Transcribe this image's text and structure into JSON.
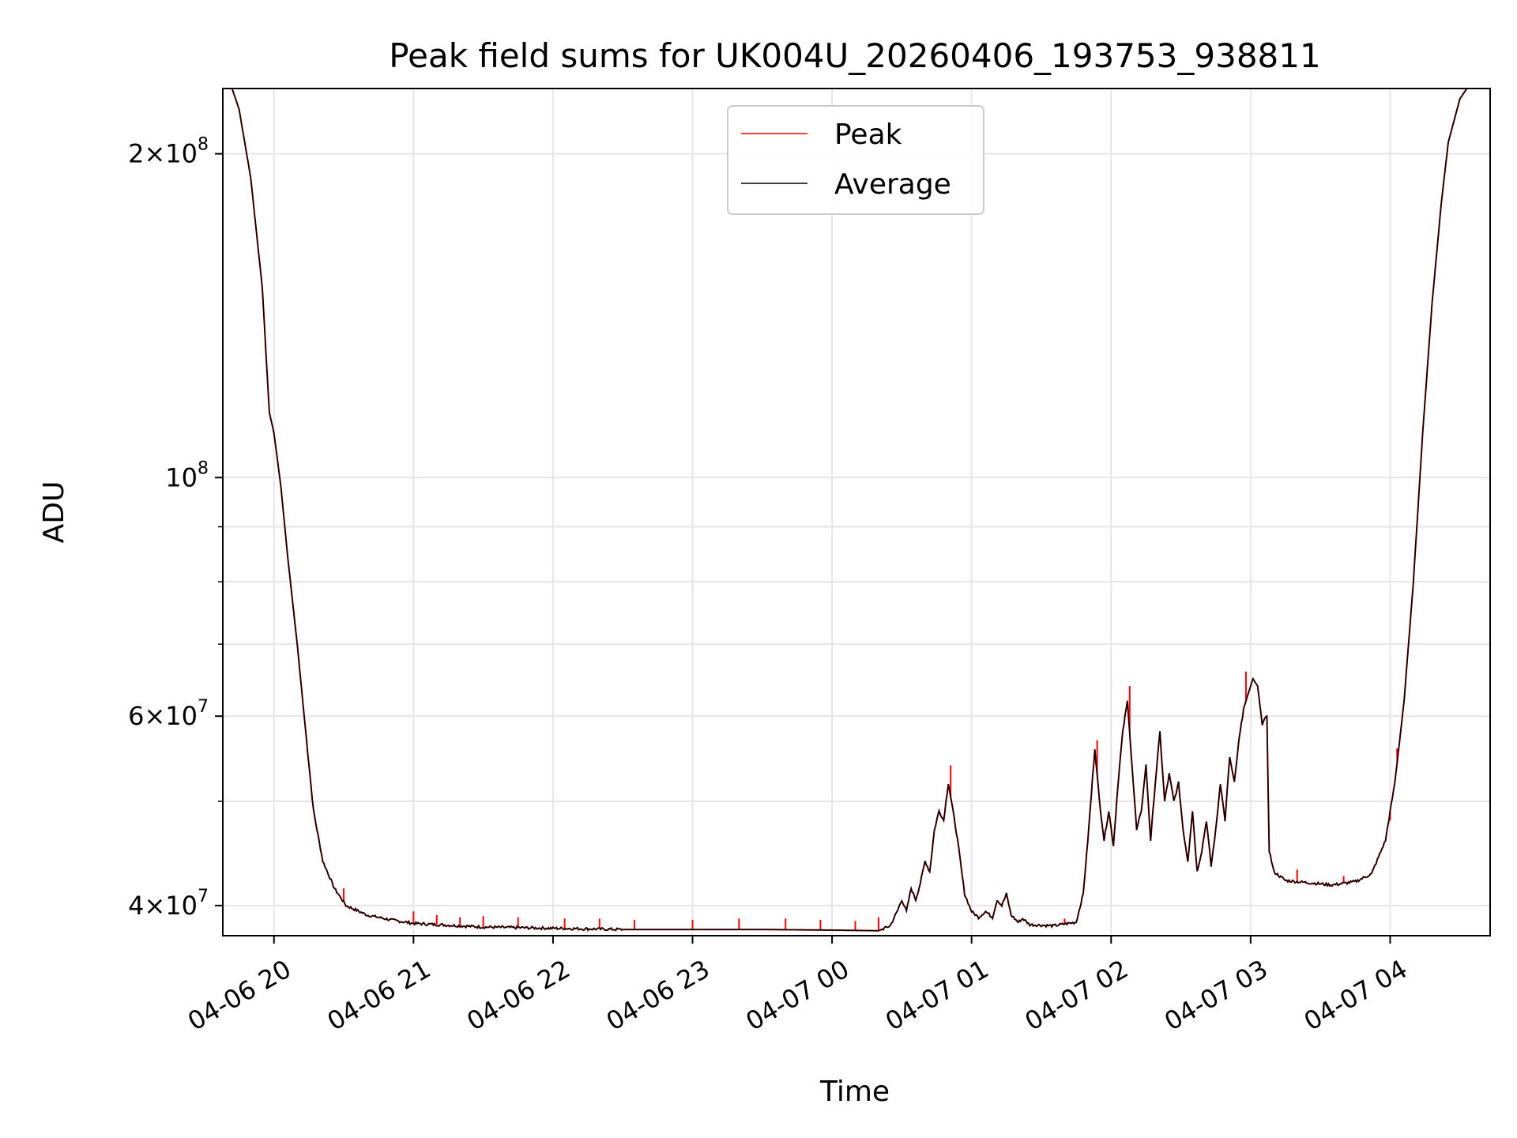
{
  "chart_data": {
    "type": "line",
    "title": "Peak field sums for UK004U_20260406_193753_938811",
    "xlabel": "Time",
    "ylabel": "ADU",
    "yscale": "log",
    "xlim": [
      "04-06 19:38",
      "04-07 04:43"
    ],
    "ylim": [
      37500000,
      230000000
    ],
    "grid": true,
    "legend_placement": "upper center",
    "x_ticks": [
      "04-06 20",
      "04-06 21",
      "04-06 22",
      "04-06 23",
      "04-07 00",
      "04-07 01",
      "04-07 02",
      "04-07 03",
      "04-07 04"
    ],
    "y_ticks": [
      {
        "value": 40000000,
        "mantissa": "4",
        "exponent": "7"
      },
      {
        "value": 60000000,
        "mantissa": "6",
        "exponent": "7"
      },
      {
        "value": 100000000,
        "mantissa": "",
        "exponent": "8"
      },
      {
        "value": 200000000,
        "mantissa": "2",
        "exponent": "8"
      }
    ],
    "series": [
      {
        "name": "Peak",
        "color": "#ff0000"
      },
      {
        "name": "Average",
        "color": "#000000"
      }
    ],
    "average_points": [
      [
        "04-06 19:38",
        230000000
      ],
      [
        "04-06 19:42",
        230000000
      ],
      [
        "04-06 19:45",
        220000000
      ],
      [
        "04-06 19:50",
        190000000
      ],
      [
        "04-06 19:55",
        150000000
      ],
      [
        "04-06 19:58",
        115000000
      ],
      [
        "04-06 20:00",
        110000000
      ],
      [
        "04-06 20:03",
        98000000
      ],
      [
        "04-06 20:06",
        84000000
      ],
      [
        "04-06 20:10",
        70000000
      ],
      [
        "04-06 20:14",
        57000000
      ],
      [
        "04-06 20:17",
        49000000
      ],
      [
        "04-06 20:21",
        44000000
      ],
      [
        "04-06 20:26",
        41500000
      ],
      [
        "04-06 20:31",
        40000000
      ],
      [
        "04-06 20:40",
        39200000
      ],
      [
        "04-06 20:50",
        38800000
      ],
      [
        "04-06 21:00",
        38500000
      ],
      [
        "04-06 21:30",
        38200000
      ],
      [
        "04-06 22:00",
        38100000
      ],
      [
        "04-06 22:30",
        38000000
      ],
      [
        "04-06 23:00",
        38000000
      ],
      [
        "04-06 23:30",
        38000000
      ],
      [
        "04-07 00:00",
        37950000
      ],
      [
        "04-07 00:20",
        37900000
      ],
      [
        "04-07 00:25",
        38300000
      ],
      [
        "04-07 00:28",
        39500000
      ],
      [
        "04-07 00:30",
        40500000
      ],
      [
        "04-07 00:32",
        39500000
      ],
      [
        "04-07 00:34",
        41500000
      ],
      [
        "04-07 00:36",
        40500000
      ],
      [
        "04-07 00:38",
        42000000
      ],
      [
        "04-07 00:40",
        44000000
      ],
      [
        "04-07 00:42",
        43000000
      ],
      [
        "04-07 00:44",
        47000000
      ],
      [
        "04-07 00:46",
        49000000
      ],
      [
        "04-07 00:48",
        48000000
      ],
      [
        "04-07 00:50",
        52000000
      ],
      [
        "04-07 00:52",
        49000000
      ],
      [
        "04-07 00:54",
        46000000
      ],
      [
        "04-07 00:57",
        41000000
      ],
      [
        "04-07 01:00",
        39500000
      ],
      [
        "04-07 01:03",
        39000000
      ],
      [
        "04-07 01:06",
        39500000
      ],
      [
        "04-07 01:09",
        39000000
      ],
      [
        "04-07 01:11",
        40500000
      ],
      [
        "04-07 01:13",
        40000000
      ],
      [
        "04-07 01:15",
        41000000
      ],
      [
        "04-07 01:17",
        39200000
      ],
      [
        "04-07 01:20",
        38600000
      ],
      [
        "04-07 01:22",
        38900000
      ],
      [
        "04-07 01:25",
        38400000
      ],
      [
        "04-07 01:35",
        38300000
      ],
      [
        "04-07 01:45",
        38600000
      ],
      [
        "04-07 01:48",
        41000000
      ],
      [
        "04-07 01:50",
        46000000
      ],
      [
        "04-07 01:53",
        56000000
      ],
      [
        "04-07 01:55",
        50000000
      ],
      [
        "04-07 01:57",
        46000000
      ],
      [
        "04-07 01:59",
        49000000
      ],
      [
        "04-07 02:01",
        45500000
      ],
      [
        "04-07 02:03",
        52000000
      ],
      [
        "04-07 02:05",
        58000000
      ],
      [
        "04-07 02:07",
        62000000
      ],
      [
        "04-07 02:09",
        54000000
      ],
      [
        "04-07 02:11",
        47000000
      ],
      [
        "04-07 02:13",
        49000000
      ],
      [
        "04-07 02:15",
        54000000
      ],
      [
        "04-07 02:17",
        46000000
      ],
      [
        "04-07 02:19",
        52000000
      ],
      [
        "04-07 02:21",
        58000000
      ],
      [
        "04-07 02:23",
        50000000
      ],
      [
        "04-07 02:25",
        53000000
      ],
      [
        "04-07 02:27",
        50000000
      ],
      [
        "04-07 02:29",
        52000000
      ],
      [
        "04-07 02:31",
        47000000
      ],
      [
        "04-07 02:33",
        44000000
      ],
      [
        "04-07 02:35",
        49000000
      ],
      [
        "04-07 02:37",
        43000000
      ],
      [
        "04-07 02:39",
        45000000
      ],
      [
        "04-07 02:41",
        48000000
      ],
      [
        "04-07 02:43",
        43500000
      ],
      [
        "04-07 02:45",
        47000000
      ],
      [
        "04-07 02:47",
        52000000
      ],
      [
        "04-07 02:49",
        48000000
      ],
      [
        "04-07 02:51",
        55000000
      ],
      [
        "04-07 02:53",
        52000000
      ],
      [
        "04-07 02:55",
        57000000
      ],
      [
        "04-07 02:57",
        61000000
      ],
      [
        "04-07 02:59",
        63000000
      ],
      [
        "04-07 03:01",
        65000000
      ],
      [
        "04-07 03:03",
        64000000
      ],
      [
        "04-07 03:05",
        59000000
      ],
      [
        "04-07 03:07",
        60000000
      ],
      [
        "04-07 03:08",
        45000000
      ],
      [
        "04-07 03:10",
        43000000
      ],
      [
        "04-07 03:15",
        42200000
      ],
      [
        "04-07 03:25",
        42000000
      ],
      [
        "04-07 03:35",
        41800000
      ],
      [
        "04-07 03:45",
        42100000
      ],
      [
        "04-07 03:52",
        42800000
      ],
      [
        "04-07 03:58",
        46000000
      ],
      [
        "04-07 04:02",
        52000000
      ],
      [
        "04-07 04:06",
        62000000
      ],
      [
        "04-07 04:10",
        80000000
      ],
      [
        "04-07 04:14",
        110000000
      ],
      [
        "04-07 04:18",
        145000000
      ],
      [
        "04-07 04:22",
        180000000
      ],
      [
        "04-07 04:25",
        205000000
      ],
      [
        "04-07 04:30",
        225000000
      ],
      [
        "04-07 04:33",
        230000000
      ],
      [
        "04-07 04:43",
        230000000
      ]
    ],
    "peak_spikes": [
      [
        "04-06 20:20",
        45000000
      ],
      [
        "04-06 20:30",
        41500000
      ],
      [
        "04-06 21:00",
        39500000
      ],
      [
        "04-06 21:10",
        39200000
      ],
      [
        "04-06 21:20",
        39000000
      ],
      [
        "04-06 21:30",
        39100000
      ],
      [
        "04-06 21:45",
        39000000
      ],
      [
        "04-06 22:05",
        38900000
      ],
      [
        "04-06 22:20",
        38900000
      ],
      [
        "04-06 22:35",
        38800000
      ],
      [
        "04-06 23:00",
        38800000
      ],
      [
        "04-06 23:20",
        38900000
      ],
      [
        "04-06 23:40",
        38900000
      ],
      [
        "04-06 23:55",
        38800000
      ],
      [
        "04-07 00:10",
        38700000
      ],
      [
        "04-07 00:20",
        39000000
      ],
      [
        "04-07 00:51",
        54000000
      ],
      [
        "04-07 01:40",
        38900000
      ],
      [
        "04-07 01:54",
        57000000
      ],
      [
        "04-07 02:08",
        64000000
      ],
      [
        "04-07 02:58",
        66000000
      ],
      [
        "04-07 03:20",
        43200000
      ],
      [
        "04-07 03:40",
        42600000
      ],
      [
        "04-07 04:00",
        48000000
      ],
      [
        "04-07 04:03",
        56000000
      ]
    ]
  }
}
